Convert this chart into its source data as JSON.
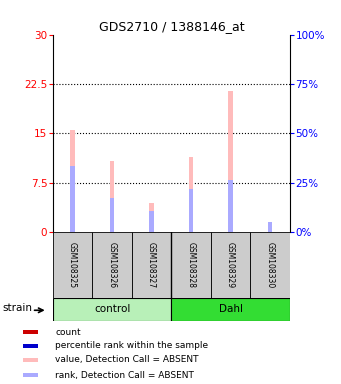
{
  "title": "GDS2710 / 1388146_at",
  "samples": [
    "GSM108325",
    "GSM108326",
    "GSM108327",
    "GSM108328",
    "GSM108329",
    "GSM108330"
  ],
  "groups": [
    "control",
    "control",
    "control",
    "Dahl",
    "Dahl",
    "Dahl"
  ],
  "group_colors": {
    "control": "#b8f0b8",
    "Dahl": "#33dd33"
  },
  "bar_absent": [
    15.5,
    10.8,
    4.5,
    11.5,
    21.5,
    0.0
  ],
  "rank_absent": [
    10.0,
    5.2,
    3.2,
    6.5,
    8.0,
    1.5
  ],
  "ylim_left": [
    0,
    30
  ],
  "ylim_right": [
    0,
    100
  ],
  "yticks_left": [
    0,
    7.5,
    15,
    22.5,
    30
  ],
  "yticks_right": [
    0,
    25,
    50,
    75,
    100
  ],
  "ytick_labels_left": [
    "0",
    "7.5",
    "15",
    "22.5",
    "30"
  ],
  "ytick_labels_right": [
    "0%",
    "25%",
    "50%",
    "75%",
    "100%"
  ],
  "color_bar_absent": "#ffbbbb",
  "color_rank_absent": "#aaaaff",
  "color_bar_present": "#cc0000",
  "color_rank_present": "#0000cc",
  "bg_plot": "#ffffff",
  "bg_sample_box": "#cccccc",
  "bar_width": 0.12
}
